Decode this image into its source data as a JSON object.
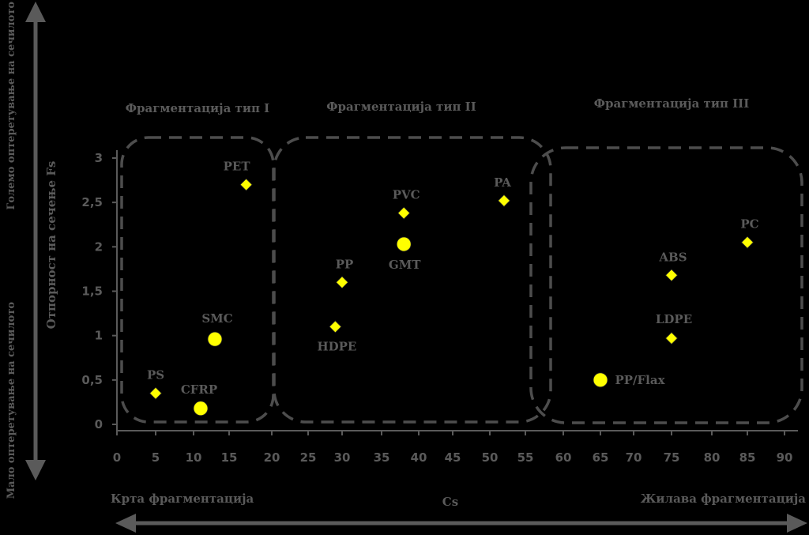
{
  "chart_data": {
    "type": "scatter",
    "title": "",
    "xlabel": "Cs",
    "ylabel": "Отпорност на сечење Fs",
    "x_ticks": [
      "0",
      "5",
      "10",
      "15",
      "20",
      "25",
      "30",
      "35",
      "40",
      "45",
      "50",
      "55",
      "60",
      "65",
      "70",
      "75",
      "80",
      "85",
      "90"
    ],
    "y_ticks": [
      "0",
      "0,5",
      "1",
      "1,5",
      "2",
      "2,5",
      "3"
    ],
    "ylim": [
      0,
      3
    ],
    "grid": false,
    "point_color": "#ffff00",
    "regions": [
      {
        "label": "Фрагментација тип I"
      },
      {
        "label": "Фрагментација тип II"
      },
      {
        "label": "Фрагментација тип III"
      }
    ],
    "bottom_left_label": "Крта фрагментација",
    "bottom_right_label": "Жилава фрагментација",
    "left_top_label": "Големо оптеретување на сечилото",
    "left_bottom_label": "Мало оптеретување на сечилото",
    "series": [
      {
        "marker": "diamond",
        "points": [
          {
            "x": 5,
            "y": 0.35,
            "label": "PS"
          },
          {
            "x": 17,
            "y": 2.7,
            "label": "PET"
          },
          {
            "x": 29,
            "y": 1.1,
            "label": "HDPE"
          },
          {
            "x": 30,
            "y": 1.6,
            "label": "PP"
          },
          {
            "x": 38,
            "y": 2.38,
            "label": "PVC"
          },
          {
            "x": 52,
            "y": 2.52,
            "label": "PA"
          },
          {
            "x": 75,
            "y": 1.68,
            "label": "ABS"
          },
          {
            "x": 75,
            "y": 0.97,
            "label": "LDPE"
          },
          {
            "x": 85,
            "y": 2.05,
            "label": "PC"
          }
        ]
      },
      {
        "marker": "circle",
        "points": [
          {
            "x": 11,
            "y": 0.18,
            "label": "CFRP"
          },
          {
            "x": 13,
            "y": 0.96,
            "label": "SMC"
          },
          {
            "x": 38,
            "y": 2.03,
            "label": "GMT"
          },
          {
            "x": 65,
            "y": 0.5,
            "label": "PP/Flax"
          }
        ]
      }
    ]
  }
}
